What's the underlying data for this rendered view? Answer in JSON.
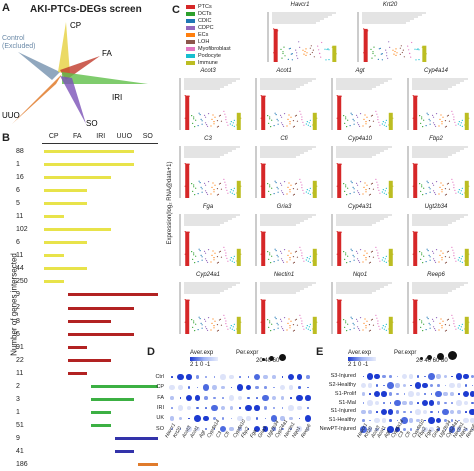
{
  "panels": {
    "a_letter": "A",
    "b_letter": "B",
    "c_letter": "C",
    "d_letter": "D",
    "e_letter": "E"
  },
  "panel_a": {
    "title": "AKI-PTCs-DEGs screen",
    "control_label_line1": "Control",
    "control_label_line2": "(Excluded)",
    "arm_labels": [
      "CP",
      "FA",
      "IRI",
      "SO",
      "UUO"
    ],
    "colors": {
      "CP": "#e7d34a",
      "FA": "#c0392b",
      "IRI": "#5fbf48",
      "SO": "#7c52b8",
      "UUO": "#e07b2b",
      "Control": "#6b8aa8"
    }
  },
  "panel_b": {
    "y_axis_label": "Number of genes intersected",
    "columns": [
      "CP",
      "FA",
      "IRI",
      "UUO",
      "SO"
    ],
    "rows": [
      {
        "count": "88",
        "color": "#e8e34a",
        "start": 0,
        "len": 4
      },
      {
        "count": "1",
        "color": "#e8e34a",
        "start": 0,
        "len": 4
      },
      {
        "count": "16",
        "color": "#e8e34a",
        "start": 0,
        "len": 3
      },
      {
        "count": "6",
        "color": "#e8e34a",
        "start": 0,
        "len": 2
      },
      {
        "count": "5",
        "color": "#e8e34a",
        "start": 0,
        "len": 2
      },
      {
        "count": "11",
        "color": "#e8e34a",
        "start": 0,
        "len": 1
      },
      {
        "count": "102",
        "color": "#e8e34a",
        "start": 0,
        "len": 3
      },
      {
        "count": "6",
        "color": "#e8e34a",
        "start": 0,
        "len": 2
      },
      {
        "count": "11",
        "color": "#e8e34a",
        "start": 0,
        "len": 1
      },
      {
        "count": "44",
        "color": "#e8e34a",
        "start": 0,
        "len": 2
      },
      {
        "count": "250",
        "color": "#e8e34a",
        "start": 0,
        "len": 1
      },
      {
        "count": "9",
        "color": "#b22222",
        "start": 1,
        "len": 4
      },
      {
        "count": "2",
        "color": "#b22222",
        "start": 1,
        "len": 3
      },
      {
        "count": "8",
        "color": "#b22222",
        "start": 1,
        "len": 2
      },
      {
        "count": "6",
        "color": "#b22222",
        "start": 1,
        "len": 3
      },
      {
        "count": "91",
        "color": "#b22222",
        "start": 1,
        "len": 1
      },
      {
        "count": "22",
        "color": "#b22222",
        "start": 1,
        "len": 2
      },
      {
        "count": "11",
        "color": "#b22222",
        "start": 1,
        "len": 1
      },
      {
        "count": "2",
        "color": "#3cb043",
        "start": 2,
        "len": 3
      },
      {
        "count": "3",
        "color": "#3cb043",
        "start": 2,
        "len": 2
      },
      {
        "count": "1",
        "color": "#3cb043",
        "start": 2,
        "len": 1
      },
      {
        "count": "51",
        "color": "#3cb043",
        "start": 2,
        "len": 1
      },
      {
        "count": "9",
        "color": "#3333aa",
        "start": 3,
        "len": 2
      },
      {
        "count": "41",
        "color": "#3333aa",
        "start": 3,
        "len": 1
      },
      {
        "count": "186",
        "color": "#e07b2b",
        "start": 4,
        "len": 1
      }
    ]
  },
  "panel_c": {
    "legend": [
      {
        "label": "PTCs",
        "color": "#d62728"
      },
      {
        "label": "DCTs",
        "color": "#2ca02c"
      },
      {
        "label": "CDIC",
        "color": "#1f77b4"
      },
      {
        "label": "CDPC",
        "color": "#9467bd"
      },
      {
        "label": "ECs",
        "color": "#ff7f0e"
      },
      {
        "label": "LOH",
        "color": "#8c564b"
      },
      {
        "label": "Myofibroblast",
        "color": "#e377c2"
      },
      {
        "label": "Podocyte",
        "color": "#17becf"
      },
      {
        "label": "Immune",
        "color": "#bcbd22"
      }
    ],
    "y_axis_label": "Expression(log₂ RNA@data+1)",
    "y_ticks": [
      "4",
      "3",
      "2",
      "1",
      "0"
    ],
    "genes_row1": [
      "Havcr1",
      "Krt20"
    ],
    "genes": [
      [
        "Acot3",
        "Acot1",
        "Agt",
        "Cyp4a14"
      ],
      [
        "C3",
        "Cfi",
        "Cyp4a10",
        "Fbp2"
      ],
      [
        "Fga",
        "Gria3",
        "Cyp4a31",
        "Ugt2b34"
      ],
      [
        "Cyp24a1",
        "Nectin1",
        "Nqo1",
        "Reep6"
      ]
    ]
  },
  "panel_d": {
    "legend_aver": "Aver.exp",
    "legend_aver_ticks": "2  1  0  -1",
    "legend_per": "Per.expr",
    "legend_per_ticks": "20  40  60",
    "rows": [
      "Ctrl",
      "CP",
      "FA",
      "IRI",
      "UK",
      "SO"
    ],
    "columns": [
      "Havcr1",
      "Krt20",
      "Acot3",
      "Acot1",
      "Agt",
      "Cyp4a14",
      "C3",
      "Cfi",
      "Cyp4a10",
      "Fbp2",
      "Fga",
      "Gria3",
      "Ugt2b34",
      "Cyp24a1",
      "Nectin1",
      "Nqo1",
      "Reep6"
    ]
  },
  "panel_e": {
    "legend_aver": "Aver.exp",
    "legend_aver_ticks": "2  1  0  -1",
    "legend_per": "Per.expr",
    "legend_per_ticks": "20  40  60  80",
    "rows": [
      "S3-Injured",
      "S2-Healthy",
      "S1-Prolif",
      "S1-Mal",
      "S1-Injured",
      "S1-Healthy",
      "NewPT-Injured"
    ],
    "columns": [
      "Havcr1",
      "Krt20",
      "Acot3",
      "Acot1",
      "Agt",
      "Cyp4a14",
      "C3",
      "Cfi",
      "Cyp4a10",
      "Fbp2",
      "Fga",
      "Gria3",
      "Ugt2b34",
      "Cyp24a1",
      "Nectin1",
      "Nqo1",
      "Reep6"
    ]
  }
}
